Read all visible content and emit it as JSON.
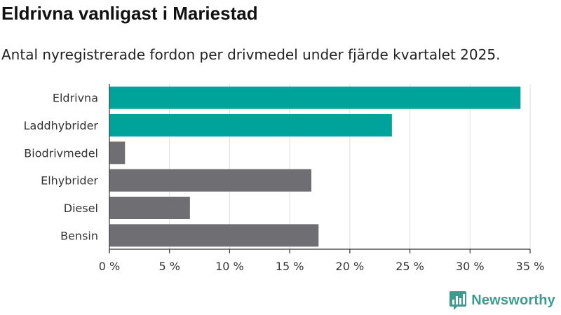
{
  "header": {
    "title": "Eldrivna vanligast i Mariestad",
    "subtitle": "Antal nyregistrerade fordon per drivmedel under fjärde kvartalet 2025."
  },
  "brand": {
    "name": "Newsworthy",
    "color": "#3d9a8e"
  },
  "chart_data": {
    "type": "bar",
    "orientation": "horizontal",
    "title": "Eldrivna vanligast i Mariestad",
    "subtitle": "Antal nyregistrerade fordon per drivmedel under fjärde kvartalet 2025.",
    "xlabel": "",
    "ylabel": "",
    "xlim": [
      0,
      35
    ],
    "x_ticks": [
      0,
      5,
      10,
      15,
      20,
      25,
      30,
      35
    ],
    "x_tick_labels": [
      "0 %",
      "5 %",
      "10 %",
      "15 %",
      "20 %",
      "25 %",
      "30 %",
      "35 %"
    ],
    "grid": true,
    "categories": [
      "Eldrivna",
      "Laddhybrider",
      "Biodrivmedel",
      "Elhybrider",
      "Diesel",
      "Bensin"
    ],
    "values": [
      34.2,
      23.5,
      1.3,
      16.8,
      6.7,
      17.4
    ],
    "unit": "%",
    "colors": [
      "#00a39a",
      "#00a39a",
      "#6e6e73",
      "#6e6e73",
      "#6e6e73",
      "#6e6e73"
    ]
  }
}
